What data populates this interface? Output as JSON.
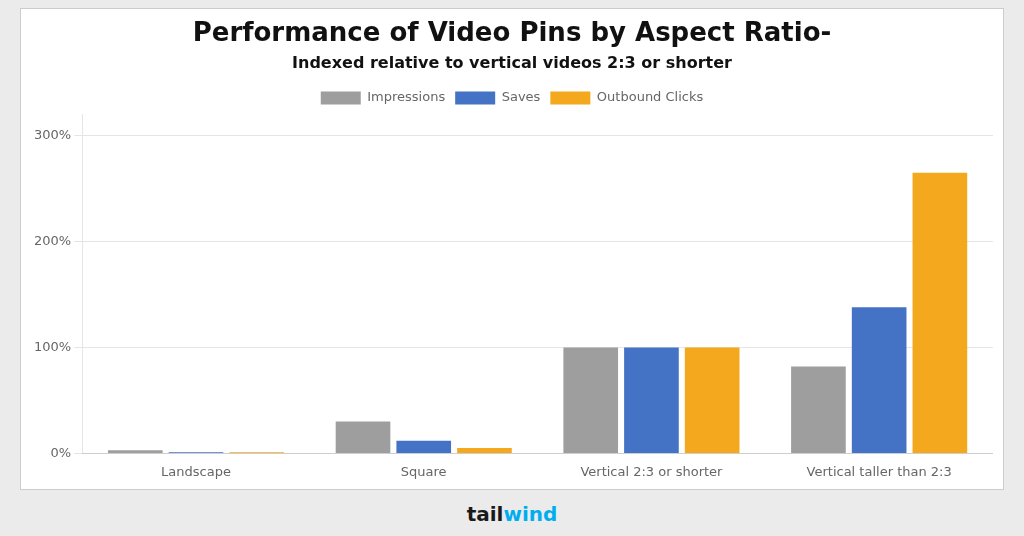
{
  "chart_data": {
    "type": "bar",
    "title": "Performance of Video Pins by Aspect Ratio-",
    "subtitle": "Indexed relative to vertical videos 2:3 or shorter",
    "categories": [
      "Landscape",
      "Square",
      "Vertical 2:3 or shorter",
      "Vertical taller than 2:3"
    ],
    "series": [
      {
        "name": "Impressions",
        "color": "#9E9E9E",
        "values": [
          3,
          30,
          100,
          82
        ]
      },
      {
        "name": "Saves",
        "color": "#4472C4",
        "values": [
          1,
          12,
          100,
          138
        ]
      },
      {
        "name": "Outbound Clicks",
        "color": "#F4A81D",
        "values": [
          1,
          5,
          100,
          265
        ]
      }
    ],
    "ylim": [
      0,
      320
    ],
    "yticks": [
      {
        "value": 0,
        "label": "0%"
      },
      {
        "value": 100,
        "label": "100%"
      },
      {
        "value": 200,
        "label": "200%"
      },
      {
        "value": 300,
        "label": "300%"
      }
    ],
    "grid": true,
    "legend": "top",
    "annotations": [
      {
        "text": "tail",
        "color": "#1A1A1A"
      },
      {
        "text": "wind",
        "color": "#00AEEF"
      }
    ]
  }
}
